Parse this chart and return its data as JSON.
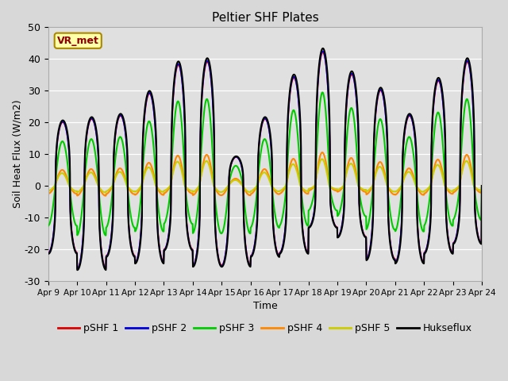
{
  "title": "Peltier SHF Plates",
  "xlabel": "Time",
  "ylabel": "Soil Heat Flux (W/m2)",
  "ylim": [
    -30,
    50
  ],
  "fig_facecolor": "#d8d8d8",
  "ax_facecolor": "#e0e0e0",
  "series": {
    "pSHF 1": "#dd0000",
    "pSHF 2": "#0000dd",
    "pSHF 3": "#00cc00",
    "pSHF 4": "#ff8800",
    "pSHF 5": "#cccc00",
    "Hukseflux": "#000000"
  },
  "xtick_labels": [
    "Apr 9",
    "Apr 10",
    "Apr 11",
    "Apr 12",
    "Apr 13",
    "Apr 14",
    "Apr 15",
    "Apr 16",
    "Apr 17",
    "Apr 18",
    "Apr 19",
    "Apr 20",
    "Apr 21",
    "Apr 22",
    "Apr 23",
    "Apr 24"
  ],
  "ytick_labels": [
    -30,
    -20,
    -10,
    0,
    10,
    20,
    30,
    40,
    50
  ],
  "annotation_text": "VR_met",
  "day_amps": [
    20,
    21,
    22,
    29,
    38,
    39,
    9,
    21,
    34,
    42,
    35,
    30,
    22,
    33,
    39
  ],
  "day_mins": [
    -21,
    -26,
    -22,
    -24,
    -20,
    -25,
    -25,
    -22,
    -21,
    -13,
    -16,
    -23,
    -24,
    -21,
    -18
  ]
}
